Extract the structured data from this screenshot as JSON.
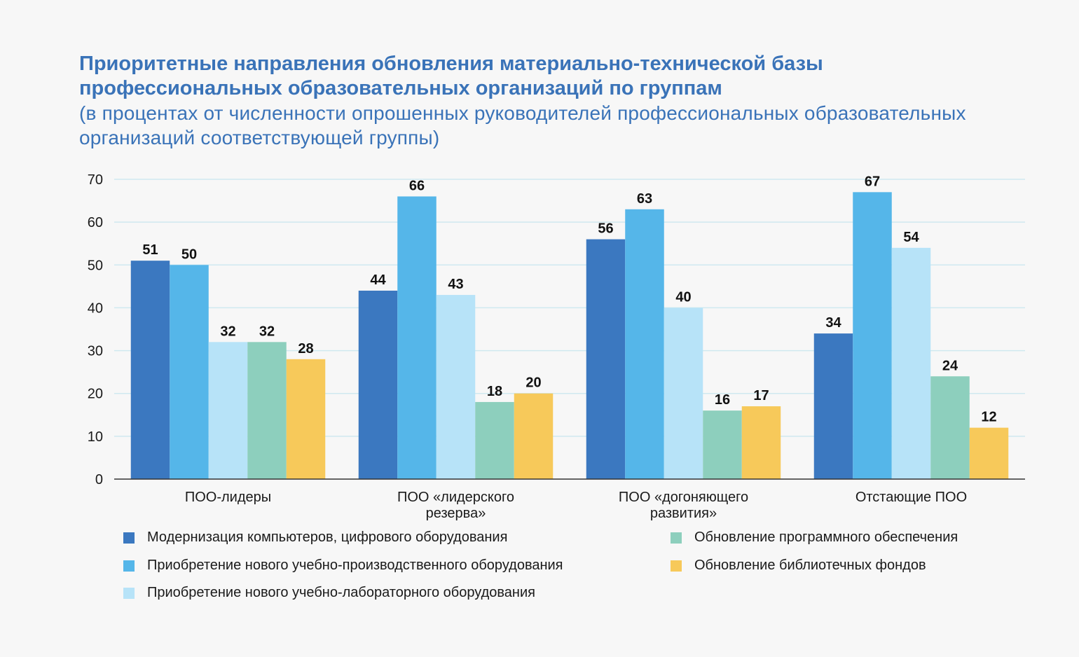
{
  "title": "Приоритетные направления обновления материально-технической базы профессиональных образовательных организаций по группам",
  "subtitle": "(в процентах от численности опрошенных руководителей профессиональных образовательных организаций соответствующей группы)",
  "chart_data": {
    "type": "bar",
    "categories": [
      [
        "ПОО-лидеры"
      ],
      [
        "ПОО «лидерского",
        "резерва»"
      ],
      [
        "ПОО «догоняющего",
        "развития»"
      ],
      [
        "Отстающие ПОО"
      ]
    ],
    "series": [
      {
        "name": "Модернизация компьютеров, цифрового оборудования",
        "color": "#3b78c0",
        "values": [
          51,
          44,
          56,
          34
        ]
      },
      {
        "name": "Приобретение нового учебно-производственного оборудования",
        "color": "#55b6e9",
        "values": [
          50,
          66,
          63,
          67
        ]
      },
      {
        "name": "Приобретение нового учебно-лабораторного оборудования",
        "color": "#b7e3f8",
        "values": [
          32,
          43,
          40,
          54
        ]
      },
      {
        "name": "Обновление программного обеспечения",
        "color": "#8dcfbd",
        "values": [
          32,
          18,
          16,
          24
        ]
      },
      {
        "name": "Обновление библиотечных фондов",
        "color": "#f7c95a",
        "values": [
          28,
          20,
          17,
          12
        ]
      }
    ],
    "yticks": [
      0,
      10,
      20,
      30,
      40,
      50,
      60,
      70
    ],
    "ylim": [
      0,
      70
    ],
    "grid": true,
    "grid_color": "#cfe9f0",
    "legend_placement": "bottom"
  }
}
